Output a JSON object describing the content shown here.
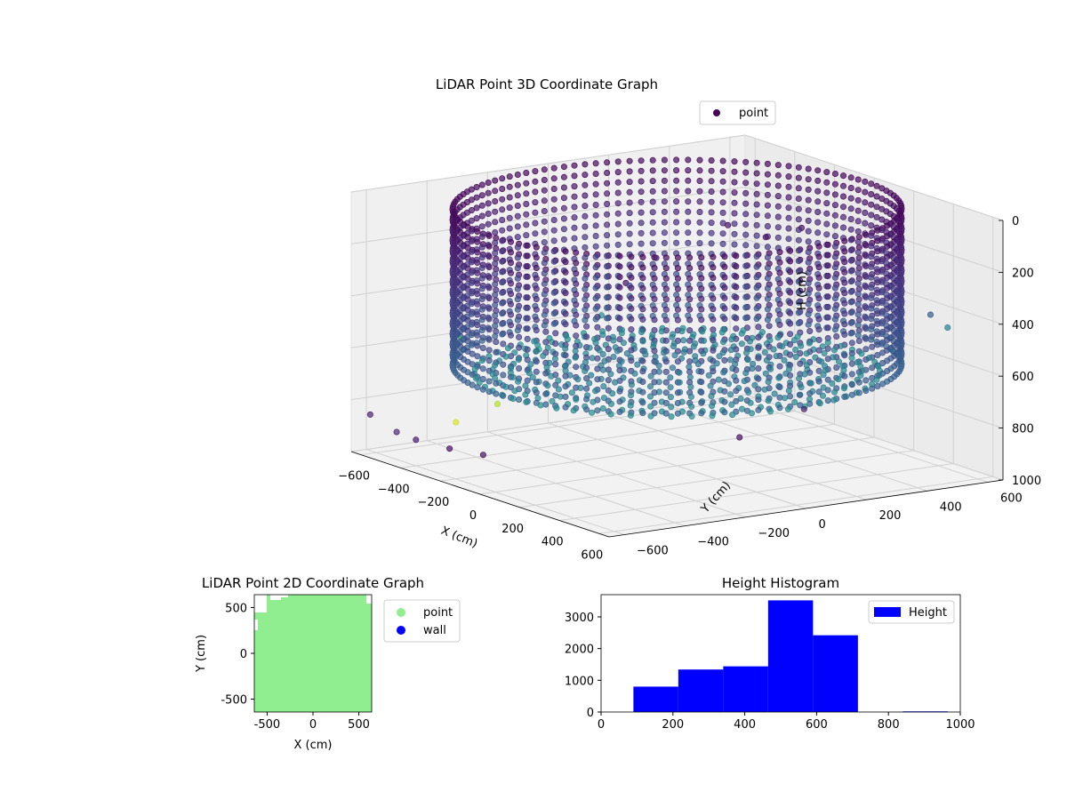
{
  "chart_data": [
    {
      "type": "scatter",
      "title": "LiDAR Point 3D Coordinate Graph",
      "xlabel": "X (cm)",
      "ylabel": "Y (cm)",
      "zlabel": "H (cm)",
      "xlim": [
        -650,
        650
      ],
      "ylim": [
        -650,
        650
      ],
      "zlim": [
        0,
        1000
      ],
      "z_inverted": true,
      "x_ticks": [
        "−600",
        "−400",
        "−200",
        "0",
        "200",
        "400",
        "600"
      ],
      "y_ticks": [
        "−600",
        "−400",
        "−200",
        "0",
        "200",
        "400",
        "600"
      ],
      "z_ticks": [
        "0",
        "200",
        "400",
        "600",
        "800",
        "1000"
      ],
      "grid": true,
      "colormap": "viridis",
      "legend": {
        "placement": "upper-right",
        "entries": [
          {
            "label": "point",
            "color": "#440154"
          }
        ]
      },
      "shape_description": "bowl-shaped point cloud: wall ring of radius ~620 cm spanning H 0 to ~600 cm, floor disc at H ~600 cm, scattered outliers",
      "outliers": [
        {
          "x": -630,
          "y": 580,
          "h": 330,
          "c": 0.05
        },
        {
          "x": -640,
          "y": 350,
          "h": 420,
          "c": 0.1
        },
        {
          "x": -610,
          "y": 150,
          "h": 600,
          "c": 0.5
        },
        {
          "x": -620,
          "y": -50,
          "h": 700,
          "c": 0.6
        },
        {
          "x": -600,
          "y": -200,
          "h": 880,
          "c": 0.9
        },
        {
          "x": -580,
          "y": -350,
          "h": 920,
          "c": 0.95
        },
        {
          "x": -650,
          "y": -500,
          "h": 950,
          "c": 0.12
        },
        {
          "x": -600,
          "y": -620,
          "h": 850,
          "c": 0.1
        },
        {
          "x": -400,
          "y": -600,
          "h": 900,
          "c": 0.08
        },
        {
          "x": -200,
          "y": -620,
          "h": 880,
          "c": 0.05
        },
        {
          "x": 0,
          "y": -640,
          "h": 850,
          "c": 0.05
        },
        {
          "x": 630,
          "y": 300,
          "h": 450,
          "c": 0.4
        },
        {
          "x": 640,
          "y": 0,
          "h": 620,
          "c": 0.1
        },
        {
          "x": 620,
          "y": -200,
          "h": 700,
          "c": 0.06
        },
        {
          "x": -500,
          "y": 620,
          "h": 350,
          "c": 0.05
        },
        {
          "x": -350,
          "y": 640,
          "h": 280,
          "c": 0.05
        },
        {
          "x": 300,
          "y": 640,
          "h": 450,
          "c": 0.3
        },
        {
          "x": 600,
          "y": 500,
          "h": 400,
          "c": 0.45
        },
        {
          "x": -630,
          "y": -300,
          "h": 620,
          "c": 0.7
        },
        {
          "x": -640,
          "y": 250,
          "h": 500,
          "c": 0.06
        }
      ]
    },
    {
      "type": "scatter",
      "title": "LiDAR Point 2D Coordinate Graph",
      "xlabel": "X (cm)",
      "ylabel": "Y (cm)",
      "xlim": [
        -640,
        640
      ],
      "ylim": [
        -640,
        640
      ],
      "x_ticks": [
        -500,
        0,
        500
      ],
      "y_ticks": [
        -500,
        0,
        500
      ],
      "fill_color": "#90ee90",
      "legend": {
        "placement": "outside-right",
        "entries": [
          {
            "label": "point",
            "color": "#90ee90"
          },
          {
            "label": "wall",
            "color": "#0000ff"
          }
        ]
      }
    },
    {
      "type": "bar",
      "title": "Height Histogram",
      "xlabel": "",
      "ylabel": "",
      "bins": [
        {
          "from": 90,
          "to": 215,
          "value": 800
        },
        {
          "from": 215,
          "to": 340,
          "value": 1340
        },
        {
          "from": 340,
          "to": 465,
          "value": 1440
        },
        {
          "from": 465,
          "to": 590,
          "value": 3520
        },
        {
          "from": 590,
          "to": 715,
          "value": 2420
        },
        {
          "from": 715,
          "to": 840,
          "value": 0
        },
        {
          "from": 840,
          "to": 965,
          "value": 20
        }
      ],
      "xlim": [
        0,
        1000
      ],
      "ylim": [
        0,
        3700
      ],
      "x_ticks": [
        0,
        200,
        400,
        600,
        800,
        1000
      ],
      "y_ticks": [
        0,
        1000,
        2000,
        3000
      ],
      "bar_color": "#0000ff",
      "legend": {
        "placement": "upper-right",
        "entries": [
          {
            "label": "Height",
            "color": "#0000ff"
          }
        ]
      }
    }
  ]
}
